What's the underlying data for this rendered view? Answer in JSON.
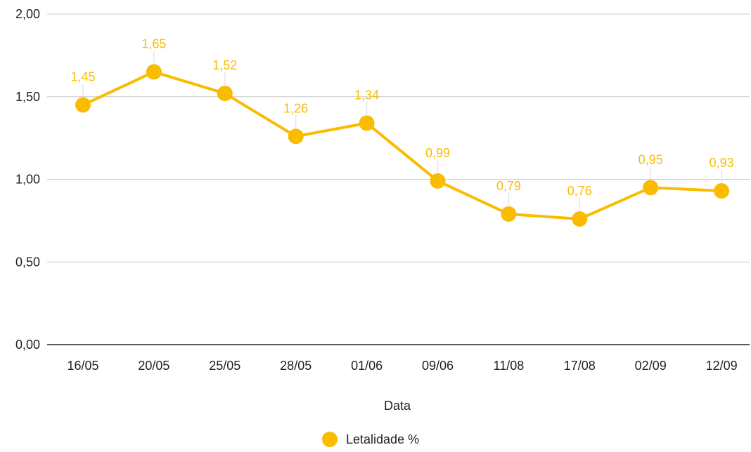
{
  "chart_data": {
    "type": "line",
    "title": "",
    "xlabel": "Data",
    "ylabel": "",
    "categories": [
      "16/05",
      "20/05",
      "25/05",
      "28/05",
      "01/06",
      "09/06",
      "11/08",
      "17/08",
      "02/09",
      "12/09"
    ],
    "series": [
      {
        "name": "Letalidade %",
        "values": [
          1.45,
          1.65,
          1.52,
          1.26,
          1.34,
          0.99,
          0.79,
          0.76,
          0.95,
          0.93
        ],
        "labels": [
          "1,45",
          "1,65",
          "1,52",
          "1,26",
          "1,34",
          "0,99",
          "0,79",
          "0,76",
          "0,95",
          "0,93"
        ],
        "color": "#f9bc00"
      }
    ],
    "ylim": [
      0,
      2
    ],
    "yticks": [
      0,
      0.5,
      1,
      1.5,
      2
    ],
    "ytick_labels": [
      "0,00",
      "0,50",
      "1,00",
      "1,50",
      "2,00"
    ],
    "grid": true,
    "legend_position": "bottom",
    "colors": {
      "gridline": "#cccccc",
      "axis": "#222222",
      "tick_text": "#222222",
      "leader_line": "#e5e5e5"
    }
  }
}
